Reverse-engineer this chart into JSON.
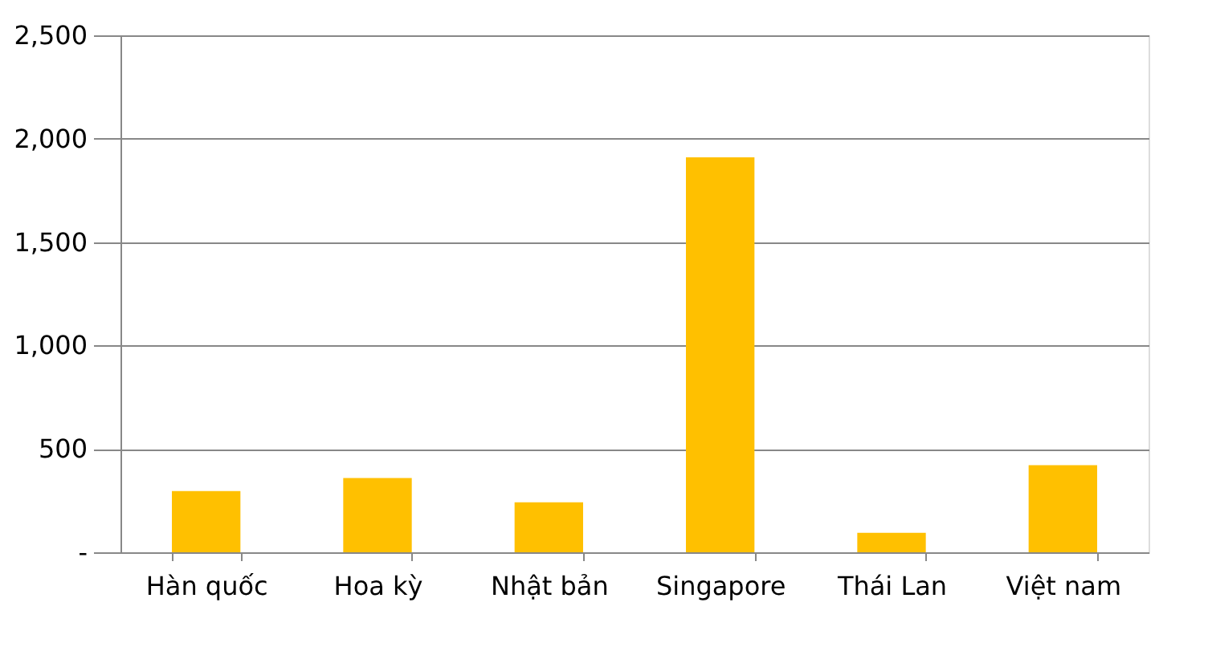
{
  "chart_data": {
    "type": "bar",
    "categories": [
      "Hàn quốc",
      "Hoa kỳ",
      "Nhật bản",
      "Singapore",
      "Thái Lan",
      "Việt nam"
    ],
    "values": [
      296,
      359,
      242,
      1910,
      94,
      421
    ],
    "color": "#ffc000",
    "ylim": [
      0,
      2500
    ],
    "yticks": [
      {
        "value": 0,
        "label": "-"
      },
      500,
      {
        "value": 1000,
        "label": "1,000"
      },
      {
        "value": 1500,
        "label": "1,500"
      },
      {
        "value": 2000,
        "label": "2,000"
      },
      {
        "value": 2500,
        "label": "2,500"
      }
    ],
    "grid": "y"
  }
}
